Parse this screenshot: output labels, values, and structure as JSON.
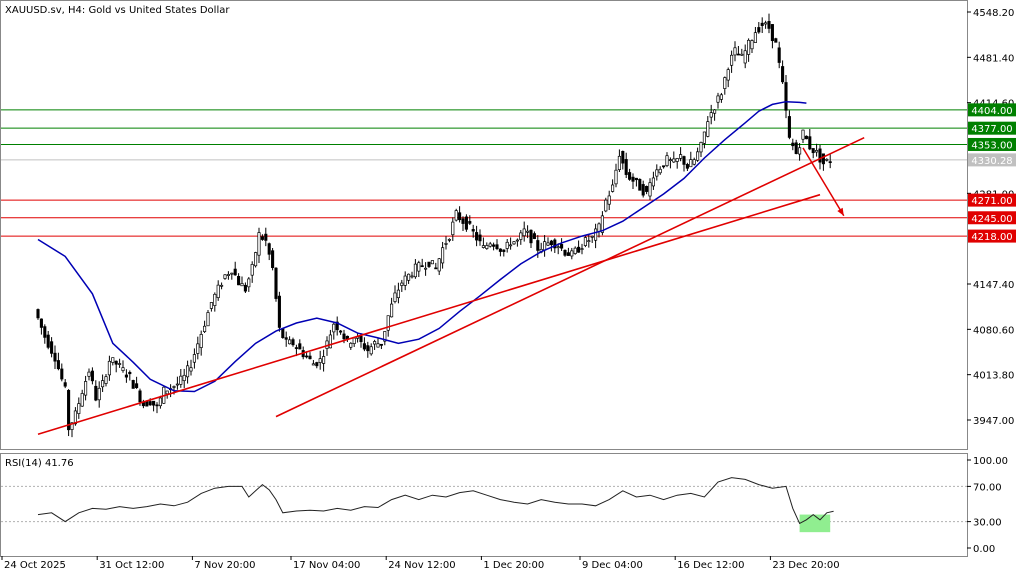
{
  "chart_data": [
    {
      "type": "candlestick",
      "title": "XAUUSD.sv, H4:  Gold vs United States Dollar",
      "price_ticks": [
        4548.2,
        4481.4,
        4414.6,
        4281.0,
        4147.4,
        4080.6,
        4013.8,
        3947.0
      ],
      "price_tick_labels": [
        "4548.20",
        "4481.40",
        "4414.60",
        "4281.00",
        "4147.40",
        "4080.60",
        "4013.80",
        "3947.00"
      ],
      "current_price": {
        "value": 4330.28,
        "label": "4330.28",
        "color": "#c0c0c0"
      },
      "ylim": [
        3916,
        4560
      ],
      "grid": false,
      "levels": [
        {
          "value": 4404.0,
          "label": "4404.00",
          "color": "#008000"
        },
        {
          "value": 4377.0,
          "label": "4377.00",
          "color": "#008000"
        },
        {
          "value": 4353.0,
          "label": "4353.00",
          "color": "#008000"
        },
        {
          "value": 4271.0,
          "label": "4271.00",
          "color": "#e00000"
        },
        {
          "value": 4245.0,
          "label": "4245.00",
          "color": "#e00000"
        },
        {
          "value": 4218.0,
          "label": "4218.00",
          "color": "#e00000"
        }
      ],
      "trendlines": [
        {
          "x1": 0,
          "y1": 3926,
          "x2": 230,
          "y2": 4279,
          "color": "#e00000"
        },
        {
          "x1": 70,
          "y1": 3952,
          "x2": 243,
          "y2": 4363,
          "color": "#e00000"
        }
      ],
      "forecast_arrow": {
        "x1": 225,
        "y1": 4348,
        "x2": 237,
        "y2": 4248,
        "color": "#e00000"
      },
      "ma_color": "#0000b4",
      "ma_points": [
        [
          0,
          4213
        ],
        [
          8,
          4188
        ],
        [
          16,
          4133
        ],
        [
          22,
          4060
        ],
        [
          28,
          4032
        ],
        [
          33,
          4007
        ],
        [
          40,
          3990
        ],
        [
          46,
          3989
        ],
        [
          52,
          4004
        ],
        [
          58,
          4033
        ],
        [
          64,
          4060
        ],
        [
          70,
          4078
        ],
        [
          76,
          4090
        ],
        [
          82,
          4097
        ],
        [
          88,
          4090
        ],
        [
          94,
          4075
        ],
        [
          100,
          4068
        ],
        [
          106,
          4060
        ],
        [
          112,
          4066
        ],
        [
          118,
          4082
        ],
        [
          124,
          4107
        ],
        [
          130,
          4130
        ],
        [
          136,
          4154
        ],
        [
          142,
          4177
        ],
        [
          148,
          4195
        ],
        [
          154,
          4208
        ],
        [
          160,
          4218
        ],
        [
          166,
          4226
        ],
        [
          172,
          4240
        ],
        [
          178,
          4260
        ],
        [
          184,
          4280
        ],
        [
          190,
          4303
        ],
        [
          196,
          4333
        ],
        [
          202,
          4360
        ],
        [
          208,
          4385
        ],
        [
          212,
          4402
        ],
        [
          216,
          4412
        ],
        [
          220,
          4416
        ],
        [
          224,
          4415
        ],
        [
          226,
          4414
        ]
      ],
      "close_points": [
        [
          0,
          4110
        ],
        [
          3,
          4070
        ],
        [
          6,
          4040
        ],
        [
          9,
          3990
        ],
        [
          10,
          3935
        ],
        [
          12,
          3955
        ],
        [
          14,
          3990
        ],
        [
          16,
          4020
        ],
        [
          18,
          3980
        ],
        [
          20,
          4000
        ],
        [
          22,
          4035
        ],
        [
          24,
          4030
        ],
        [
          26,
          4020
        ],
        [
          28,
          4010
        ],
        [
          30,
          3990
        ],
        [
          32,
          3970
        ],
        [
          34,
          3975
        ],
        [
          36,
          3965
        ],
        [
          38,
          3990
        ],
        [
          40,
          3995
        ],
        [
          42,
          4000
        ],
        [
          44,
          4010
        ],
        [
          46,
          4030
        ],
        [
          48,
          4060
        ],
        [
          50,
          4090
        ],
        [
          52,
          4120
        ],
        [
          54,
          4140
        ],
        [
          56,
          4160
        ],
        [
          58,
          4170
        ],
        [
          60,
          4150
        ],
        [
          62,
          4140
        ],
        [
          64,
          4170
        ],
        [
          66,
          4220
        ],
        [
          68,
          4210
        ],
        [
          70,
          4170
        ],
        [
          72,
          4080
        ],
        [
          74,
          4060
        ],
        [
          76,
          4060
        ],
        [
          78,
          4050
        ],
        [
          80,
          4040
        ],
        [
          82,
          4030
        ],
        [
          84,
          4035
        ],
        [
          86,
          4060
        ],
        [
          88,
          4090
        ],
        [
          90,
          4080
        ],
        [
          92,
          4060
        ],
        [
          94,
          4070
        ],
        [
          96,
          4060
        ],
        [
          98,
          4050
        ],
        [
          100,
          4060
        ],
        [
          102,
          4060
        ],
        [
          104,
          4100
        ],
        [
          106,
          4130
        ],
        [
          108,
          4150
        ],
        [
          110,
          4160
        ],
        [
          112,
          4170
        ],
        [
          114,
          4175
        ],
        [
          116,
          4180
        ],
        [
          118,
          4170
        ],
        [
          120,
          4200
        ],
        [
          122,
          4220
        ],
        [
          124,
          4250
        ],
        [
          126,
          4240
        ],
        [
          128,
          4230
        ],
        [
          130,
          4215
        ],
        [
          132,
          4200
        ],
        [
          134,
          4210
        ],
        [
          136,
          4205
        ],
        [
          138,
          4195
        ],
        [
          140,
          4210
        ],
        [
          142,
          4210
        ],
        [
          144,
          4225
        ],
        [
          146,
          4215
        ],
        [
          148,
          4200
        ],
        [
          150,
          4205
        ],
        [
          152,
          4210
        ],
        [
          154,
          4205
        ],
        [
          156,
          4195
        ],
        [
          158,
          4190
        ],
        [
          160,
          4200
        ],
        [
          162,
          4210
        ],
        [
          164,
          4215
        ],
        [
          166,
          4230
        ],
        [
          168,
          4270
        ],
        [
          170,
          4290
        ],
        [
          172,
          4340
        ],
        [
          174,
          4310
        ],
        [
          176,
          4300
        ],
        [
          178,
          4290
        ],
        [
          180,
          4280
        ],
        [
          182,
          4310
        ],
        [
          184,
          4320
        ],
        [
          186,
          4330
        ],
        [
          188,
          4325
        ],
        [
          190,
          4335
        ],
        [
          192,
          4320
        ],
        [
          194,
          4330
        ],
        [
          196,
          4350
        ],
        [
          198,
          4390
        ],
        [
          200,
          4410
        ],
        [
          202,
          4430
        ],
        [
          204,
          4470
        ],
        [
          206,
          4490
        ],
        [
          208,
          4480
        ],
        [
          210,
          4500
        ],
        [
          212,
          4520
        ],
        [
          214,
          4530
        ],
        [
          216,
          4525
        ],
        [
          218,
          4500
        ],
        [
          220,
          4440
        ],
        [
          222,
          4360
        ],
        [
          224,
          4340
        ],
        [
          226,
          4370
        ],
        [
          228,
          4350
        ],
        [
          230,
          4340
        ],
        [
          232,
          4325
        ],
        [
          234,
          4330
        ]
      ],
      "x_labels": [
        {
          "x": 0,
          "label": "24 Oct 2025"
        },
        {
          "x": 28,
          "label": "31 Oct 12:00"
        },
        {
          "x": 56,
          "label": "7 Nov 20:00"
        },
        {
          "x": 85,
          "label": "17 Nov 04:00"
        },
        {
          "x": 113,
          "label": "24 Nov 12:00"
        },
        {
          "x": 141,
          "label": "1 Dec 20:00"
        },
        {
          "x": 170,
          "label": "9 Dec 04:00"
        },
        {
          "x": 198,
          "label": "16 Dec 12:00"
        },
        {
          "x": 226,
          "label": "23 Dec 20:00"
        }
      ]
    },
    {
      "type": "line",
      "title": "RSI(14) 41.76",
      "ticks": [
        100.0,
        70.0,
        30.0,
        0.0
      ],
      "tick_labels": [
        "100.00",
        "70.00",
        "30.00",
        "0.00"
      ],
      "ylim": [
        0,
        100
      ],
      "reference_levels": [
        70,
        30
      ],
      "line_color": "#222222",
      "highlight": {
        "x1": 224,
        "x2": 233,
        "y1": 18,
        "y2": 38,
        "color": "#90ee90"
      },
      "values": [
        [
          0,
          38
        ],
        [
          4,
          40
        ],
        [
          8,
          30
        ],
        [
          12,
          40
        ],
        [
          16,
          45
        ],
        [
          20,
          44
        ],
        [
          24,
          47
        ],
        [
          28,
          45
        ],
        [
          32,
          47
        ],
        [
          36,
          50
        ],
        [
          40,
          48
        ],
        [
          44,
          52
        ],
        [
          48,
          62
        ],
        [
          52,
          68
        ],
        [
          56,
          70
        ],
        [
          60,
          70
        ],
        [
          62,
          58
        ],
        [
          64,
          65
        ],
        [
          66,
          72
        ],
        [
          68,
          66
        ],
        [
          70,
          55
        ],
        [
          72,
          40
        ],
        [
          76,
          42
        ],
        [
          80,
          43
        ],
        [
          84,
          42
        ],
        [
          88,
          45
        ],
        [
          92,
          43
        ],
        [
          96,
          47
        ],
        [
          100,
          46
        ],
        [
          104,
          55
        ],
        [
          108,
          60
        ],
        [
          112,
          55
        ],
        [
          116,
          60
        ],
        [
          120,
          58
        ],
        [
          124,
          63
        ],
        [
          128,
          65
        ],
        [
          132,
          60
        ],
        [
          136,
          55
        ],
        [
          140,
          52
        ],
        [
          144,
          50
        ],
        [
          148,
          55
        ],
        [
          152,
          52
        ],
        [
          156,
          50
        ],
        [
          160,
          50
        ],
        [
          164,
          48
        ],
        [
          168,
          55
        ],
        [
          172,
          65
        ],
        [
          176,
          58
        ],
        [
          180,
          60
        ],
        [
          184,
          55
        ],
        [
          188,
          60
        ],
        [
          192,
          62
        ],
        [
          196,
          58
        ],
        [
          200,
          75
        ],
        [
          204,
          80
        ],
        [
          208,
          78
        ],
        [
          212,
          72
        ],
        [
          216,
          68
        ],
        [
          220,
          70
        ],
        [
          222,
          45
        ],
        [
          224,
          28
        ],
        [
          226,
          32
        ],
        [
          228,
          38
        ],
        [
          230,
          32
        ],
        [
          232,
          40
        ],
        [
          234,
          41.76
        ]
      ]
    }
  ]
}
